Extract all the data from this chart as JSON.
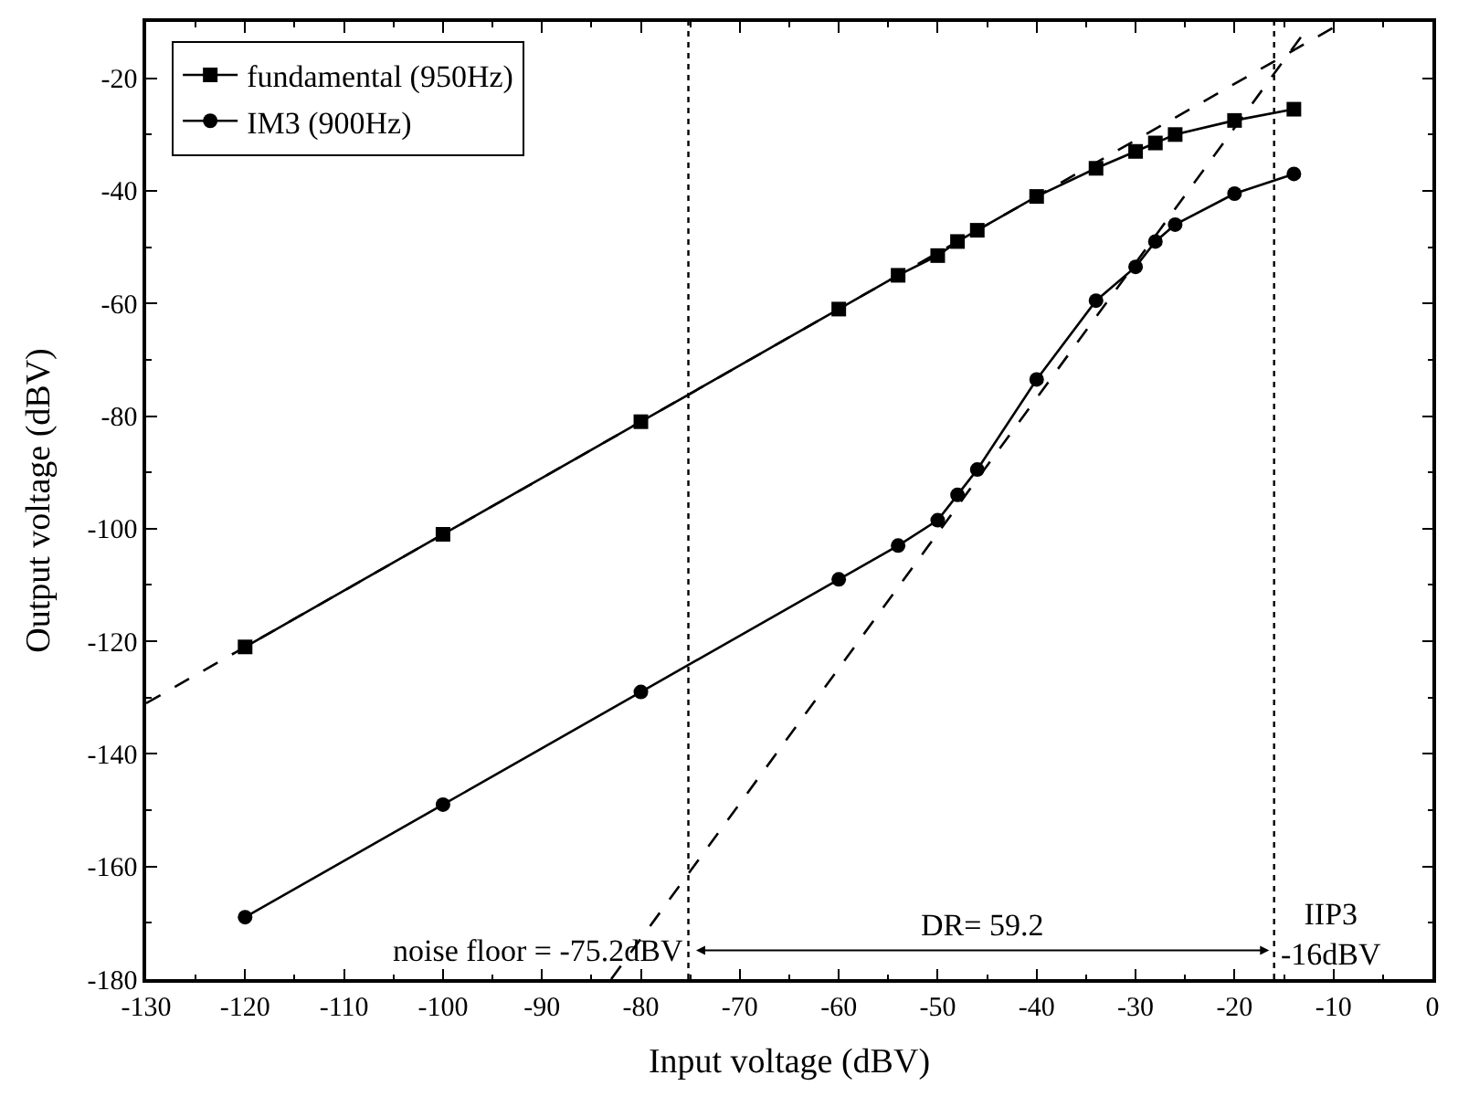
{
  "chart_data": {
    "type": "line",
    "xlabel": "Input voltage (dBV)",
    "ylabel": "Output voltage (dBV)",
    "xlim": [
      -130,
      0
    ],
    "xticks": [
      -130,
      -120,
      -110,
      -100,
      -90,
      -80,
      -70,
      -60,
      -50,
      -40,
      -30,
      -20,
      -10,
      0
    ],
    "ylim": [
      -180,
      -10
    ],
    "yticks": [
      -180,
      -160,
      -140,
      -120,
      -100,
      -80,
      -60,
      -40,
      -20
    ],
    "legend": "top left",
    "line_style": "solid",
    "series": [
      {
        "name": "fundamental (950Hz)",
        "color": "#000000",
        "marker": "square",
        "x": [
          -120,
          -100,
          -80,
          -60,
          -54,
          -50,
          -48,
          -46,
          -40,
          -34,
          -30,
          -28,
          -26,
          -20,
          -14
        ],
        "values": [
          -121,
          -101,
          -81,
          -61,
          -55,
          -51.5,
          -49,
          -47,
          -41,
          -36,
          -33,
          -31.5,
          -30,
          -27.5,
          -25.5
        ]
      },
      {
        "name": "IM3 (900Hz)",
        "color": "#000000",
        "marker": "circle",
        "x": [
          -120,
          -100,
          -80,
          -60,
          -54,
          -50,
          -48,
          -46,
          -40,
          -34,
          -30,
          -28,
          -26,
          -20,
          -14
        ],
        "values": [
          -169,
          -149,
          -129,
          -109,
          -103,
          -98.5,
          -94,
          -89.5,
          -73.5,
          -59.5,
          -53.5,
          -49,
          -46,
          -40.5,
          -37
        ]
      },
      {
        "type": "line",
        "color": "#000000",
        "marker": "none",
        "line_style": "dashed",
        "x": [
          -130,
          -10
        ],
        "values": [
          -131,
          -11
        ]
      },
      {
        "type": "line",
        "color": "#000000",
        "marker": "none",
        "line_style": "dashed",
        "x": [
          -83,
          -13
        ],
        "values": [
          -180,
          -12
        ]
      }
    ],
    "ref_lines": [
      {
        "axis": "x",
        "value": -75.2,
        "line_style": "dotted",
        "color": "#000000"
      },
      {
        "axis": "x",
        "value": -16,
        "line_style": "dotted",
        "color": "#000000"
      }
    ],
    "annotations": [
      {
        "text": "noise floor = -75.2dBV",
        "x": -75.2,
        "y": -175
      },
      "DR= 59.2",
      {
        "text": "IIP3\n-16dBV",
        "x": -16,
        "y": -172
      }
    ]
  }
}
